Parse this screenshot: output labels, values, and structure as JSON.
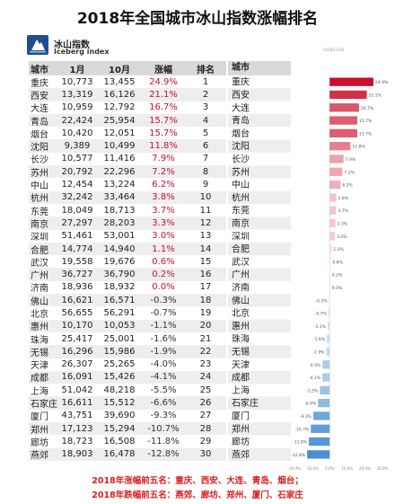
{
  "title": "2018年全国城市冰山指数涨幅排名",
  "brand": {
    "name_cn": "冰山指数",
    "name_en": "Iceberg index",
    "date_note": "2018/11/16"
  },
  "table": {
    "headers": {
      "city": "城市",
      "jan": "1月",
      "oct": "10月",
      "change": "涨幅",
      "rank": "排名"
    },
    "rows": [
      {
        "city": "重庆",
        "jan": "10,773",
        "oct": "13,455",
        "change": "24.9%",
        "rank": "1"
      },
      {
        "city": "西安",
        "jan": "13,319",
        "oct": "16,126",
        "change": "21.1%",
        "rank": "2"
      },
      {
        "city": "大连",
        "jan": "10,959",
        "oct": "12,792",
        "change": "16.7%",
        "rank": "3"
      },
      {
        "city": "青岛",
        "jan": "22,424",
        "oct": "25,954",
        "change": "15.7%",
        "rank": "4"
      },
      {
        "city": "烟台",
        "jan": "10,420",
        "oct": "12,051",
        "change": "15.7%",
        "rank": "5"
      },
      {
        "city": "沈阳",
        "jan": "9,389",
        "oct": "10,499",
        "change": "11.8%",
        "rank": "6"
      },
      {
        "city": "长沙",
        "jan": "10,577",
        "oct": "11,416",
        "change": "7.9%",
        "rank": "7"
      },
      {
        "city": "苏州",
        "jan": "20,792",
        "oct": "22,296",
        "change": "7.2%",
        "rank": "8"
      },
      {
        "city": "中山",
        "jan": "12,454",
        "oct": "13,224",
        "change": "6.2%",
        "rank": "9"
      },
      {
        "city": "杭州",
        "jan": "32,242",
        "oct": "33,464",
        "change": "3.8%",
        "rank": "10"
      },
      {
        "city": "东莞",
        "jan": "18,049",
        "oct": "18,713",
        "change": "3.7%",
        "rank": "11"
      },
      {
        "city": "南京",
        "jan": "27,297",
        "oct": "28,203",
        "change": "3.3%",
        "rank": "12"
      },
      {
        "city": "深圳",
        "jan": "51,461",
        "oct": "53,001",
        "change": "3.0%",
        "rank": "13"
      },
      {
        "city": "合肥",
        "jan": "14,774",
        "oct": "14,940",
        "change": "1.1%",
        "rank": "14"
      },
      {
        "city": "武汉",
        "jan": "19,558",
        "oct": "19,676",
        "change": "0.6%",
        "rank": "15"
      },
      {
        "city": "广州",
        "jan": "36,727",
        "oct": "36,790",
        "change": "0.2%",
        "rank": "16"
      },
      {
        "city": "济南",
        "jan": "18,936",
        "oct": "18,932",
        "change": "0.0%",
        "rank": "17"
      },
      {
        "city": "佛山",
        "jan": "16,621",
        "oct": "16,571",
        "change": "-0.3%",
        "rank": "18"
      },
      {
        "city": "北京",
        "jan": "56,655",
        "oct": "56,291",
        "change": "-0.7%",
        "rank": "19"
      },
      {
        "city": "惠州",
        "jan": "10,170",
        "oct": "10,053",
        "change": "-1.1%",
        "rank": "20"
      },
      {
        "city": "珠海",
        "jan": "25,417",
        "oct": "25,001",
        "change": "-1.6%",
        "rank": "21"
      },
      {
        "city": "无锡",
        "jan": "16,296",
        "oct": "15,986",
        "change": "-1.9%",
        "rank": "22"
      },
      {
        "city": "天津",
        "jan": "26,307",
        "oct": "25,265",
        "change": "-4.0%",
        "rank": "23"
      },
      {
        "city": "成都",
        "jan": "16,091",
        "oct": "15,426",
        "change": "-4.1%",
        "rank": "24"
      },
      {
        "city": "上海",
        "jan": "51,042",
        "oct": "48,218",
        "change": "-5.5%",
        "rank": "25"
      },
      {
        "city": "石家庄",
        "jan": "16,611",
        "oct": "15,512",
        "change": "-6.6%",
        "rank": "26"
      },
      {
        "city": "厦门",
        "jan": "43,751",
        "oct": "39,690",
        "change": "-9.3%",
        "rank": "27"
      },
      {
        "city": "郑州",
        "jan": "17,123",
        "oct": "15,294",
        "change": "-10.7%",
        "rank": "28"
      },
      {
        "city": "廊坊",
        "jan": "18,723",
        "oct": "16,508",
        "change": "-11.8%",
        "rank": "29"
      },
      {
        "city": "燕郊",
        "jan": "18,903",
        "oct": "16,478",
        "change": "-12.8%",
        "rank": "30"
      }
    ]
  },
  "chart_data": {
    "type": "bar",
    "orientation": "horizontal",
    "header": "城市",
    "categories": [
      "重庆",
      "西安",
      "大连",
      "青岛",
      "烟台",
      "沈阳",
      "长沙",
      "苏州",
      "中山",
      "杭州",
      "东莞",
      "南京",
      "深圳",
      "合肥",
      "武汉",
      "广州",
      "济南",
      "佛山",
      "北京",
      "惠州",
      "珠海",
      "无锡",
      "天津",
      "成都",
      "上海",
      "石家庄",
      "厦门",
      "郑州",
      "廊坊",
      "燕郊"
    ],
    "values": [
      24.9,
      21.1,
      16.7,
      15.7,
      15.7,
      11.8,
      7.9,
      7.2,
      6.2,
      3.8,
      3.7,
      3.3,
      3.0,
      1.1,
      0.6,
      0.2,
      0.0,
      -0.3,
      -0.7,
      -1.1,
      -1.6,
      -1.9,
      -4.0,
      -4.1,
      -5.5,
      -6.6,
      -9.3,
      -10.7,
      -11.8,
      -12.8
    ],
    "value_labels": [
      "24.9%",
      "21.1%",
      "16.7%",
      "15.7%",
      "15.7%",
      "11.8%",
      "7.9%",
      "7.2%",
      "6.2%",
      "3.8%",
      "3.7%",
      "3.3%",
      "3.0%",
      "1.1%",
      "0.6%",
      "0.2%",
      "0.0%",
      "-0.3%",
      "-0.7%",
      "-1.1%",
      "-1.6%",
      "-1.9%",
      "-4.0%",
      "-4.1%",
      "-5.5%",
      "-6.6%",
      "-9.3%",
      "-10.7%",
      "-11.8%",
      "-12.8%"
    ],
    "xlim": [
      -20,
      30
    ],
    "xticks": [
      "-20.0%",
      "-10.0%",
      "0.0%",
      "10.0%",
      "20.0%",
      "30.0%"
    ],
    "colors": {
      "positive_max": "#c8102e",
      "positive_min": "#fbe4e7",
      "negative_min": "#dbe8f5",
      "negative_max": "#4a8fd0"
    }
  },
  "footer": {
    "line1": "2018年涨幅前五名：重庆、西安、大连、青岛、烟台；",
    "line2": "2018年跌幅前五名：燕郊、廊坊、郑州、厦门、石家庄"
  }
}
